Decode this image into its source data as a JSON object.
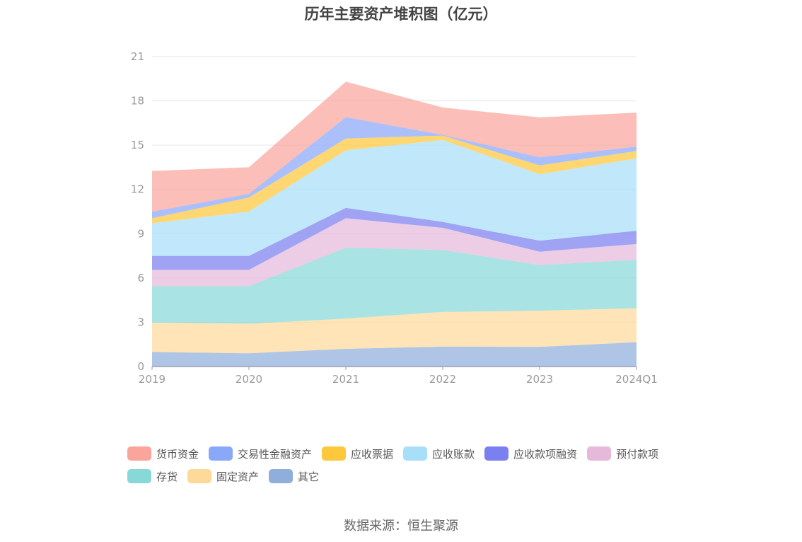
{
  "title": "历年主要资产堆积图（亿元）",
  "source": "数据来源：恒生聚源",
  "chart_data": {
    "type": "area",
    "stacked": true,
    "categories": [
      "2019",
      "2020",
      "2021",
      "2022",
      "2023",
      "2024Q1"
    ],
    "ylim": [
      0,
      21
    ],
    "yticks": [
      0,
      3,
      6,
      9,
      12,
      15,
      18,
      21
    ],
    "grid": true,
    "legend_position": "bottom",
    "series": [
      {
        "name": "其它",
        "color": "#8faedb",
        "values": [
          0.98,
          0.9,
          1.2,
          1.35,
          1.33,
          1.65
        ]
      },
      {
        "name": "固定资产",
        "color": "#fdd99a",
        "values": [
          2.0,
          2.0,
          2.05,
          2.35,
          2.45,
          2.3
        ]
      },
      {
        "name": "存货",
        "color": "#88d8d8",
        "values": [
          2.47,
          2.55,
          4.8,
          4.2,
          3.1,
          3.28
        ]
      },
      {
        "name": "预付款项",
        "color": "#e6b9db",
        "values": [
          1.1,
          1.1,
          2.0,
          1.5,
          0.9,
          1.07
        ]
      },
      {
        "name": "应收款项融资",
        "color": "#7b80f0",
        "values": [
          0.95,
          0.95,
          0.7,
          0.4,
          0.75,
          0.9
        ]
      },
      {
        "name": "应收账款",
        "color": "#a8dff8",
        "values": [
          2.2,
          3.0,
          3.9,
          5.55,
          4.5,
          4.9
        ]
      },
      {
        "name": "应收票据",
        "color": "#fdc83c",
        "values": [
          0.35,
          0.95,
          0.8,
          0.3,
          0.6,
          0.5
        ]
      },
      {
        "name": "交易性金融资产",
        "color": "#8aa8f8",
        "values": [
          0.45,
          0.25,
          1.45,
          0.05,
          0.55,
          0.3
        ]
      },
      {
        "name": "货币资金",
        "color": "#f9a59c",
        "values": [
          2.75,
          1.8,
          2.4,
          1.85,
          2.7,
          2.3
        ]
      }
    ],
    "legend_order": [
      "货币资金",
      "交易性金融资产",
      "应收票据",
      "应收账款",
      "应收款项融资",
      "预付款项",
      "存货",
      "固定资产",
      "其它"
    ]
  }
}
